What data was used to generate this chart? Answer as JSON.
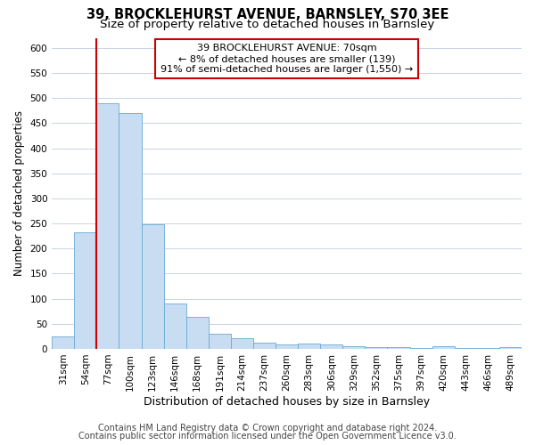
{
  "title": "39, BROCKLEHURST AVENUE, BARNSLEY, S70 3EE",
  "subtitle": "Size of property relative to detached houses in Barnsley",
  "xlabel": "Distribution of detached houses by size in Barnsley",
  "ylabel": "Number of detached properties",
  "categories": [
    "31sqm",
    "54sqm",
    "77sqm",
    "100sqm",
    "123sqm",
    "146sqm",
    "168sqm",
    "191sqm",
    "214sqm",
    "237sqm",
    "260sqm",
    "283sqm",
    "306sqm",
    "329sqm",
    "352sqm",
    "375sqm",
    "397sqm",
    "420sqm",
    "443sqm",
    "466sqm",
    "489sqm"
  ],
  "values": [
    25,
    232,
    490,
    470,
    248,
    90,
    63,
    30,
    22,
    13,
    8,
    10,
    8,
    5,
    4,
    3,
    2,
    6,
    2,
    2,
    3
  ],
  "bar_color": "#c9ddf2",
  "bar_edge_color": "#6aaad4",
  "vline_x": 1.5,
  "vline_color": "#cc0000",
  "annotation_lines": [
    "39 BROCKLEHURST AVENUE: 70sqm",
    "← 8% of detached houses are smaller (139)",
    "91% of semi-detached houses are larger (1,550) →"
  ],
  "annotation_box_color": "#cc0000",
  "ylim": [
    0,
    620
  ],
  "yticks": [
    0,
    50,
    100,
    150,
    200,
    250,
    300,
    350,
    400,
    450,
    500,
    550,
    600
  ],
  "footnote1": "Contains HM Land Registry data © Crown copyright and database right 2024.",
  "footnote2": "Contains public sector information licensed under the Open Government Licence v3.0.",
  "background_color": "#ffffff",
  "grid_color": "#c8d4e4",
  "title_fontsize": 10.5,
  "subtitle_fontsize": 9.5,
  "xlabel_fontsize": 9,
  "ylabel_fontsize": 8.5,
  "tick_fontsize": 7.5,
  "annotation_fontsize": 8,
  "footnote_fontsize": 7
}
